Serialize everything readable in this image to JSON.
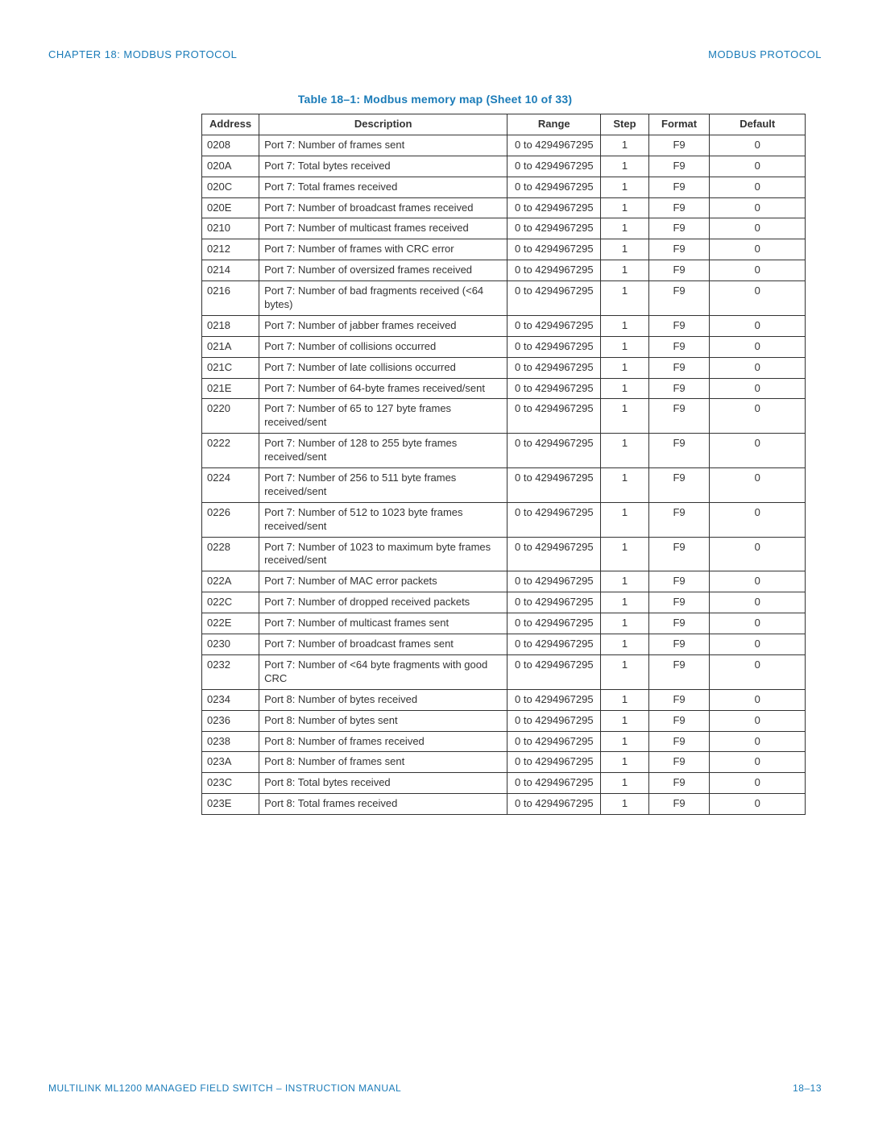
{
  "header": {
    "left": "CHAPTER 18: MODBUS PROTOCOL",
    "right": "MODBUS PROTOCOL"
  },
  "caption": "Table 18–1: Modbus memory map (Sheet 10 of 33)",
  "columns": [
    {
      "key": "address",
      "label": "Address"
    },
    {
      "key": "description",
      "label": "Description"
    },
    {
      "key": "range",
      "label": "Range"
    },
    {
      "key": "step",
      "label": "Step"
    },
    {
      "key": "format",
      "label": "Format"
    },
    {
      "key": "default_",
      "label": "Default"
    }
  ],
  "rows": [
    {
      "address": "0208",
      "description": "Port 7: Number of frames sent",
      "range": "0 to 4294967295",
      "step": "1",
      "format": "F9",
      "default_": "0"
    },
    {
      "address": "020A",
      "description": "Port 7: Total bytes received",
      "range": "0 to 4294967295",
      "step": "1",
      "format": "F9",
      "default_": "0"
    },
    {
      "address": "020C",
      "description": "Port 7: Total frames received",
      "range": "0 to 4294967295",
      "step": "1",
      "format": "F9",
      "default_": "0"
    },
    {
      "address": "020E",
      "description": "Port 7: Number of broadcast frames received",
      "range": "0 to 4294967295",
      "step": "1",
      "format": "F9",
      "default_": "0"
    },
    {
      "address": "0210",
      "description": "Port 7: Number of multicast frames received",
      "range": "0 to 4294967295",
      "step": "1",
      "format": "F9",
      "default_": "0"
    },
    {
      "address": "0212",
      "description": "Port 7: Number of frames with CRC error",
      "range": "0 to 4294967295",
      "step": "1",
      "format": "F9",
      "default_": "0"
    },
    {
      "address": "0214",
      "description": "Port 7: Number of oversized frames received",
      "range": "0 to 4294967295",
      "step": "1",
      "format": "F9",
      "default_": "0"
    },
    {
      "address": "0216",
      "description": "Port 7: Number of bad fragments received (<64 bytes)",
      "range": "0 to 4294967295",
      "step": "1",
      "format": "F9",
      "default_": "0"
    },
    {
      "address": "0218",
      "description": "Port 7: Number of jabber frames received",
      "range": "0 to 4294967295",
      "step": "1",
      "format": "F9",
      "default_": "0"
    },
    {
      "address": "021A",
      "description": "Port 7: Number of collisions occurred",
      "range": "0 to 4294967295",
      "step": "1",
      "format": "F9",
      "default_": "0"
    },
    {
      "address": "021C",
      "description": "Port 7: Number of late collisions occurred",
      "range": "0 to 4294967295",
      "step": "1",
      "format": "F9",
      "default_": "0"
    },
    {
      "address": "021E",
      "description": "Port 7: Number of 64-byte frames received/sent",
      "range": "0 to 4294967295",
      "step": "1",
      "format": "F9",
      "default_": "0"
    },
    {
      "address": "0220",
      "description": "Port 7: Number of 65 to 127 byte frames received/sent",
      "range": "0 to 4294967295",
      "step": "1",
      "format": "F9",
      "default_": "0"
    },
    {
      "address": "0222",
      "description": "Port 7: Number of 128 to 255 byte frames received/sent",
      "range": "0 to 4294967295",
      "step": "1",
      "format": "F9",
      "default_": "0"
    },
    {
      "address": "0224",
      "description": "Port 7: Number of 256 to 511 byte frames received/sent",
      "range": "0 to 4294967295",
      "step": "1",
      "format": "F9",
      "default_": "0"
    },
    {
      "address": "0226",
      "description": "Port 7: Number of 512 to 1023 byte frames received/sent",
      "range": "0 to 4294967295",
      "step": "1",
      "format": "F9",
      "default_": "0"
    },
    {
      "address": "0228",
      "description": "Port 7: Number of 1023 to maximum byte frames received/sent",
      "range": "0 to 4294967295",
      "step": "1",
      "format": "F9",
      "default_": "0"
    },
    {
      "address": "022A",
      "description": "Port 7: Number of MAC error packets",
      "range": "0 to 4294967295",
      "step": "1",
      "format": "F9",
      "default_": "0"
    },
    {
      "address": "022C",
      "description": "Port 7: Number of dropped received packets",
      "range": "0 to 4294967295",
      "step": "1",
      "format": "F9",
      "default_": "0"
    },
    {
      "address": "022E",
      "description": "Port 7: Number of multicast frames sent",
      "range": "0 to 4294967295",
      "step": "1",
      "format": "F9",
      "default_": "0"
    },
    {
      "address": "0230",
      "description": "Port 7: Number of broadcast frames sent",
      "range": "0 to 4294967295",
      "step": "1",
      "format": "F9",
      "default_": "0"
    },
    {
      "address": "0232",
      "description": "Port 7: Number of <64 byte fragments with good CRC",
      "range": "0 to 4294967295",
      "step": "1",
      "format": "F9",
      "default_": "0"
    },
    {
      "address": "0234",
      "description": "Port 8: Number of bytes received",
      "range": "0 to 4294967295",
      "step": "1",
      "format": "F9",
      "default_": "0"
    },
    {
      "address": "0236",
      "description": "Port 8: Number of bytes sent",
      "range": "0 to 4294967295",
      "step": "1",
      "format": "F9",
      "default_": "0"
    },
    {
      "address": "0238",
      "description": "Port 8: Number of frames received",
      "range": "0 to 4294967295",
      "step": "1",
      "format": "F9",
      "default_": "0"
    },
    {
      "address": "023A",
      "description": "Port 8: Number of frames sent",
      "range": "0 to 4294967295",
      "step": "1",
      "format": "F9",
      "default_": "0"
    },
    {
      "address": "023C",
      "description": "Port 8: Total bytes received",
      "range": "0 to 4294967295",
      "step": "1",
      "format": "F9",
      "default_": "0"
    },
    {
      "address": "023E",
      "description": "Port 8: Total frames received",
      "range": "0 to 4294967295",
      "step": "1",
      "format": "F9",
      "default_": "0"
    }
  ],
  "footer": {
    "left": "MULTILINK ML1200 MANAGED FIELD SWITCH – INSTRUCTION MANUAL",
    "right": "18–13"
  },
  "colors": {
    "accent": "#1a7bb8",
    "text": "#333333",
    "border": "#333333",
    "background": "#ffffff"
  }
}
